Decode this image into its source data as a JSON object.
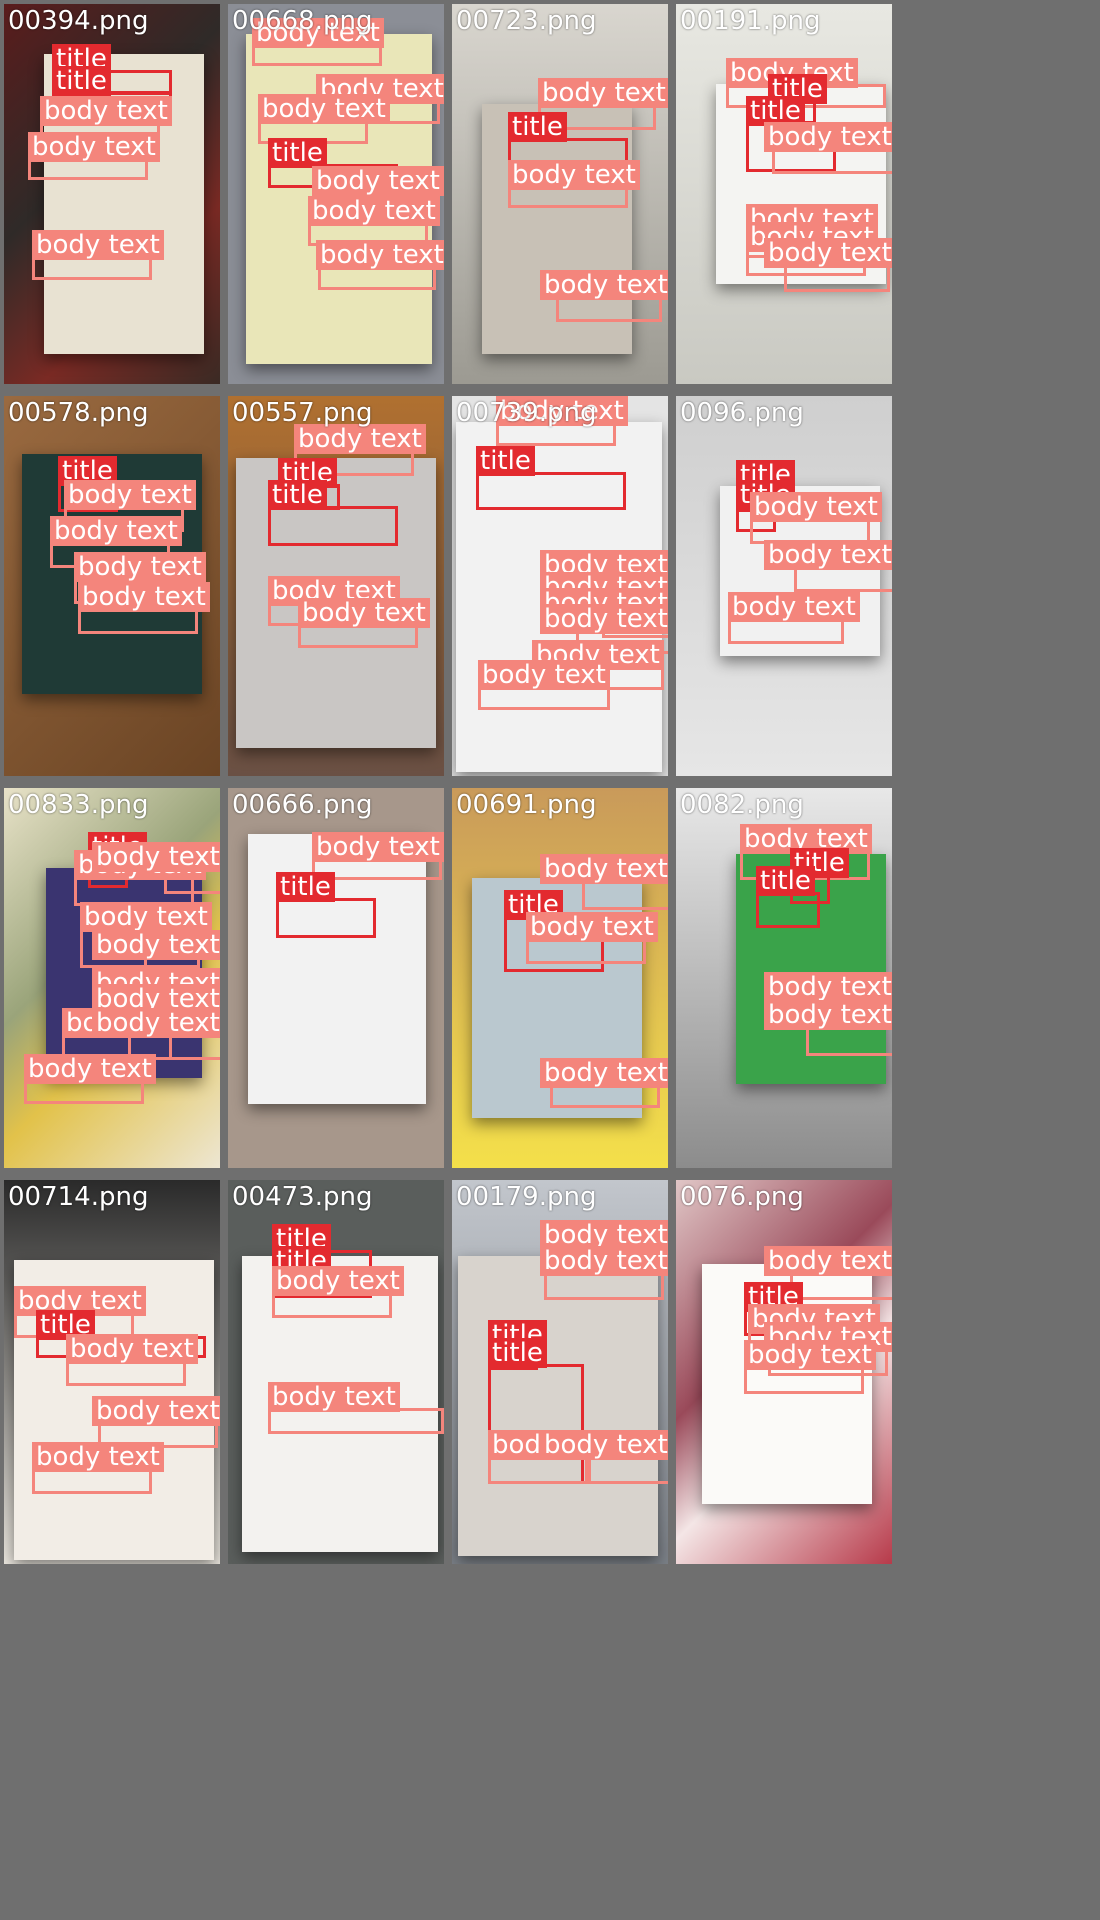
{
  "colors": {
    "title": "#e32a2f",
    "body_text": "#f4857c"
  },
  "tiles": [
    {
      "filename": "00394.png",
      "annotations": [
        {
          "cls": "title",
          "label": "title"
        },
        {
          "cls": "title",
          "label": "title"
        },
        {
          "cls": "body",
          "label": "body text"
        },
        {
          "cls": "body",
          "label": "body text"
        },
        {
          "cls": "body",
          "label": "body text"
        }
      ]
    },
    {
      "filename": "00668.png",
      "annotations": [
        {
          "cls": "body",
          "label": "body text"
        },
        {
          "cls": "body",
          "label": "body text"
        },
        {
          "cls": "body",
          "label": "body text"
        },
        {
          "cls": "title",
          "label": "title"
        },
        {
          "cls": "body",
          "label": "body text"
        },
        {
          "cls": "body",
          "label": "body text"
        },
        {
          "cls": "body",
          "label": "body text"
        }
      ]
    },
    {
      "filename": "00723.png",
      "annotations": [
        {
          "cls": "body",
          "label": "body text"
        },
        {
          "cls": "title",
          "label": "title"
        },
        {
          "cls": "body",
          "label": "body text"
        },
        {
          "cls": "body",
          "label": "body text"
        }
      ]
    },
    {
      "filename": "00191.png",
      "annotations": [
        {
          "cls": "body",
          "label": "body text"
        },
        {
          "cls": "title",
          "label": "title"
        },
        {
          "cls": "title",
          "label": "title"
        },
        {
          "cls": "body",
          "label": "body text"
        },
        {
          "cls": "body",
          "label": "body text"
        },
        {
          "cls": "body",
          "label": "body text"
        },
        {
          "cls": "body",
          "label": "body text"
        }
      ]
    },
    {
      "filename": "00578.png",
      "annotations": [
        {
          "cls": "title",
          "label": "title"
        },
        {
          "cls": "body",
          "label": "body text"
        },
        {
          "cls": "body",
          "label": "body text"
        },
        {
          "cls": "body",
          "label": "body text"
        },
        {
          "cls": "body",
          "label": "body text"
        }
      ]
    },
    {
      "filename": "00557.png",
      "annotations": [
        {
          "cls": "body",
          "label": "body text"
        },
        {
          "cls": "title",
          "label": "title"
        },
        {
          "cls": "title",
          "label": "title"
        },
        {
          "cls": "body",
          "label": "body text"
        },
        {
          "cls": "body",
          "label": "body text"
        }
      ]
    },
    {
      "filename": "00739.png",
      "annotations": [
        {
          "cls": "body",
          "label": "body text"
        },
        {
          "cls": "title",
          "label": "title"
        },
        {
          "cls": "body",
          "label": "body text"
        },
        {
          "cls": "body",
          "label": "body text"
        },
        {
          "cls": "body",
          "label": "body text"
        },
        {
          "cls": "body",
          "label": "body text"
        },
        {
          "cls": "body",
          "label": "body text"
        },
        {
          "cls": "body",
          "label": "body text"
        }
      ]
    },
    {
      "filename": "0096.png",
      "annotations": [
        {
          "cls": "title",
          "label": "title"
        },
        {
          "cls": "title",
          "label": "title"
        },
        {
          "cls": "body",
          "label": "body text"
        },
        {
          "cls": "body",
          "label": "body text"
        },
        {
          "cls": "body",
          "label": "body text"
        }
      ]
    },
    {
      "filename": "00833.png",
      "annotations": [
        {
          "cls": "title",
          "label": "title"
        },
        {
          "cls": "body",
          "label": "body text"
        },
        {
          "cls": "body",
          "label": "body text"
        },
        {
          "cls": "body",
          "label": "body text"
        },
        {
          "cls": "body",
          "label": "body text"
        },
        {
          "cls": "body",
          "label": "body text"
        },
        {
          "cls": "body",
          "label": "body text"
        },
        {
          "cls": "body",
          "label": "body text"
        },
        {
          "cls": "body",
          "label": "body text"
        },
        {
          "cls": "body",
          "label": "body text"
        }
      ]
    },
    {
      "filename": "00666.png",
      "annotations": [
        {
          "cls": "body",
          "label": "body text"
        },
        {
          "cls": "title",
          "label": "title"
        }
      ]
    },
    {
      "filename": "00691.png",
      "annotations": [
        {
          "cls": "body",
          "label": "body text"
        },
        {
          "cls": "title",
          "label": "title"
        },
        {
          "cls": "body",
          "label": "body text"
        },
        {
          "cls": "body",
          "label": "body text"
        }
      ]
    },
    {
      "filename": "0082.png",
      "annotations": [
        {
          "cls": "body",
          "label": "body text"
        },
        {
          "cls": "title",
          "label": "title"
        },
        {
          "cls": "title",
          "label": "title"
        },
        {
          "cls": "body",
          "label": "body text"
        },
        {
          "cls": "body",
          "label": "body text"
        }
      ]
    },
    {
      "filename": "00714.png",
      "annotations": [
        {
          "cls": "body",
          "label": "body text"
        },
        {
          "cls": "title",
          "label": "title"
        },
        {
          "cls": "body",
          "label": "body text"
        },
        {
          "cls": "body",
          "label": "body text"
        },
        {
          "cls": "body",
          "label": "body text"
        }
      ]
    },
    {
      "filename": "00473.png",
      "annotations": [
        {
          "cls": "title",
          "label": "title"
        },
        {
          "cls": "title",
          "label": "title"
        },
        {
          "cls": "body",
          "label": "body text"
        },
        {
          "cls": "body",
          "label": "body text"
        }
      ]
    },
    {
      "filename": "00179.png",
      "annotations": [
        {
          "cls": "body",
          "label": "body text"
        },
        {
          "cls": "body",
          "label": "body text"
        },
        {
          "cls": "title",
          "label": "title"
        },
        {
          "cls": "title",
          "label": "title"
        },
        {
          "cls": "body",
          "label": "body text"
        },
        {
          "cls": "body",
          "label": "body text"
        }
      ]
    },
    {
      "filename": "0076.png",
      "annotations": [
        {
          "cls": "body",
          "label": "body text"
        },
        {
          "cls": "title",
          "label": "title"
        },
        {
          "cls": "body",
          "label": "body text"
        },
        {
          "cls": "body",
          "label": "body text"
        },
        {
          "cls": "body",
          "label": "body text"
        }
      ]
    }
  ]
}
